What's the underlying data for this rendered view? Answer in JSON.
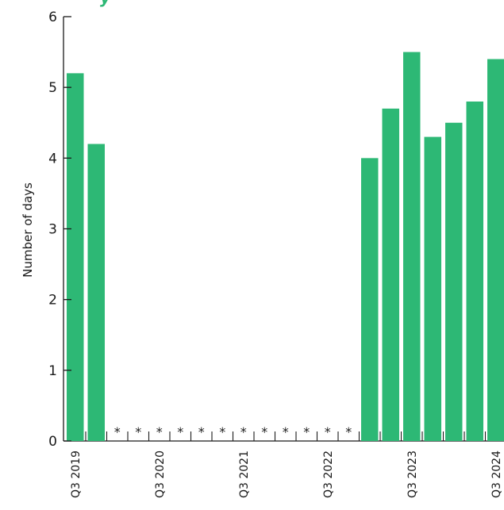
{
  "colors": {
    "bar": "#2db875",
    "axis": "#1a1a1a",
    "title": "#2db875"
  },
  "title_fragment": "y",
  "chart_data": {
    "type": "bar",
    "ylabel": "Number of days",
    "xlabel": "",
    "ylim": [
      0,
      6
    ],
    "yticks": [
      0,
      1,
      2,
      3,
      4,
      5,
      6
    ],
    "grid": false,
    "categories": [
      "Q3 2019",
      "Q4 2019",
      "Q1 2020",
      "Q2 2020",
      "Q3 2020",
      "Q4 2020",
      "Q1 2021",
      "Q2 2021",
      "Q3 2021",
      "Q4 2021",
      "Q1 2022",
      "Q2 2022",
      "Q3 2022",
      "Q4 2022",
      "Q1 2023",
      "Q2 2023",
      "Q3 2023",
      "Q4 2023",
      "Q1 2024",
      "Q2 2024",
      "Q3 2024"
    ],
    "x_tick_labels": [
      "Q3 2019",
      "",
      "",
      "",
      "Q3 2020",
      "",
      "",
      "",
      "Q3 2021",
      "",
      "",
      "",
      "Q3 2022",
      "",
      "",
      "",
      "Q3 2023",
      "",
      "",
      "",
      "Q3 2024"
    ],
    "values": [
      5.2,
      4.2,
      null,
      null,
      null,
      null,
      null,
      null,
      null,
      null,
      null,
      null,
      null,
      null,
      4.0,
      4.7,
      5.5,
      4.3,
      4.5,
      4.8,
      5.4
    ],
    "missing_marker": "*"
  }
}
